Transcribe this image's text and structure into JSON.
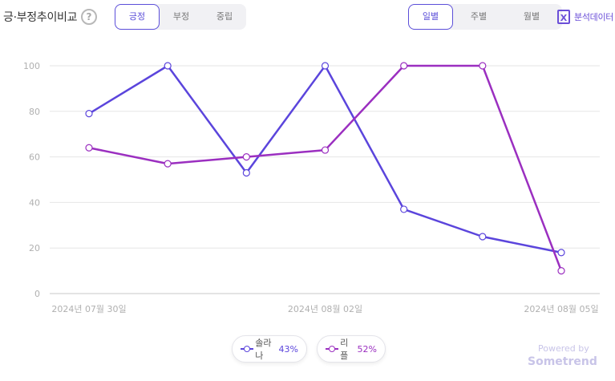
{
  "header": {
    "title": "긍·부정추이비교",
    "help_icon": "?"
  },
  "sentiment_tabs": {
    "options": [
      "긍정",
      "부정",
      "중립"
    ],
    "selected": "긍정"
  },
  "period_tabs": {
    "options": [
      "일별",
      "주별",
      "월별"
    ],
    "selected": "일별"
  },
  "export": {
    "icon": "excel-icon",
    "label": "분석데이터"
  },
  "chart_data": {
    "type": "line",
    "x": [
      "2024년 07월 30일",
      "2024년 07월 31일",
      "2024년 08월 01일",
      "2024년 08월 02일",
      "2024년 08월 03일",
      "2024년 08월 04일",
      "2024년 08월 05일"
    ],
    "x_tick_labels": [
      "2024년 07월 30일",
      "2024년 08월 02일",
      "2024년 08월 05일"
    ],
    "series": [
      {
        "name": "솔라나",
        "share": "43%",
        "color": "#5b45dc",
        "values": [
          79,
          100,
          53,
          100,
          37,
          25,
          18
        ]
      },
      {
        "name": "리플",
        "share": "52%",
        "color": "#9b2fc0",
        "values": [
          64,
          57,
          60,
          63,
          100,
          100,
          10
        ]
      }
    ],
    "ylim": [
      0,
      100
    ],
    "yticks": [
      "0",
      "20",
      "40",
      "60",
      "80",
      "100"
    ],
    "grid": true,
    "legend": "bottom-center"
  },
  "footer": {
    "powered_by": "Powered by",
    "brand": "Sometrend"
  }
}
